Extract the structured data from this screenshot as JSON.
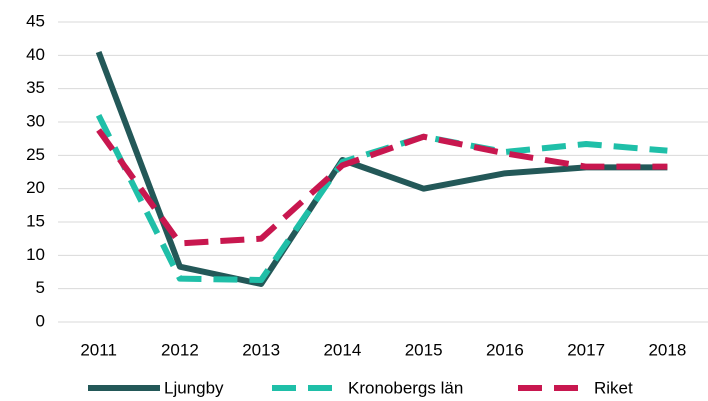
{
  "chart_data": {
    "type": "line",
    "categories": [
      "2011",
      "2012",
      "2013",
      "2014",
      "2015",
      "2016",
      "2017",
      "2018"
    ],
    "series": [
      {
        "name": "Ljungby",
        "color": "#235858",
        "style": "solid",
        "values": [
          40.5,
          8.3,
          5.7,
          24.3,
          20,
          22.3,
          23.2,
          23.2
        ]
      },
      {
        "name": "Kronobergs län",
        "color": "#1fbfa8",
        "style": "dashed",
        "values": [
          31,
          6.5,
          6.3,
          24,
          27.8,
          25.5,
          26.7,
          25.7
        ]
      },
      {
        "name": "Riket",
        "color": "#c8174f",
        "style": "dashed",
        "values": [
          28.8,
          11.8,
          12.5,
          23.5,
          27.8,
          25.3,
          23.3,
          23.3
        ]
      }
    ],
    "ylim": [
      0,
      45
    ],
    "yticks": [
      0,
      5,
      10,
      15,
      20,
      25,
      30,
      35,
      40,
      45
    ],
    "grid": true,
    "legend": "bottom"
  }
}
